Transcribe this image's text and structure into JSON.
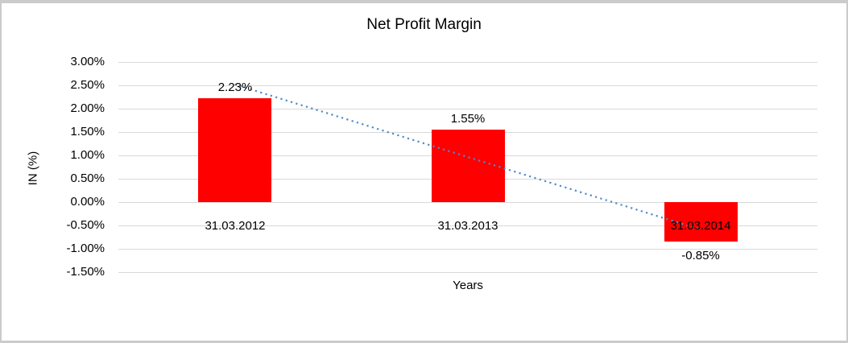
{
  "chart_data": {
    "type": "bar",
    "title": "Net Profit Margin",
    "xlabel": "Years",
    "ylabel": "IN (%)",
    "categories": [
      "31.03.2012",
      "31.03.2013",
      "31.03.2014"
    ],
    "values": [
      2.23,
      1.55,
      -0.85
    ],
    "data_labels": [
      "2.23%",
      "1.55%",
      "-0.85%"
    ],
    "y_ticks": [
      {
        "label": "3.00%",
        "value": 3.0
      },
      {
        "label": "2.50%",
        "value": 2.5
      },
      {
        "label": "2.00%",
        "value": 2.0
      },
      {
        "label": "1.50%",
        "value": 1.5
      },
      {
        "label": "1.00%",
        "value": 1.0
      },
      {
        "label": "0.50%",
        "value": 0.5
      },
      {
        "label": "0.00%",
        "value": 0.0
      },
      {
        "label": "-0.50%",
        "value": -0.5
      },
      {
        "label": "-1.00%",
        "value": -1.0
      },
      {
        "label": "-1.50%",
        "value": -1.5
      }
    ],
    "ylim": [
      -1.5,
      3.0
    ],
    "grid": true,
    "legend": "none",
    "bar_color": "#ff0000",
    "gridline_color": "#d9d9d9",
    "frame_border_color": "#cbcbcb",
    "trendline": {
      "type": "linear",
      "style": "dotted",
      "color": "#4f8ac9",
      "start_value": 2.52,
      "end_value": -0.59
    }
  }
}
